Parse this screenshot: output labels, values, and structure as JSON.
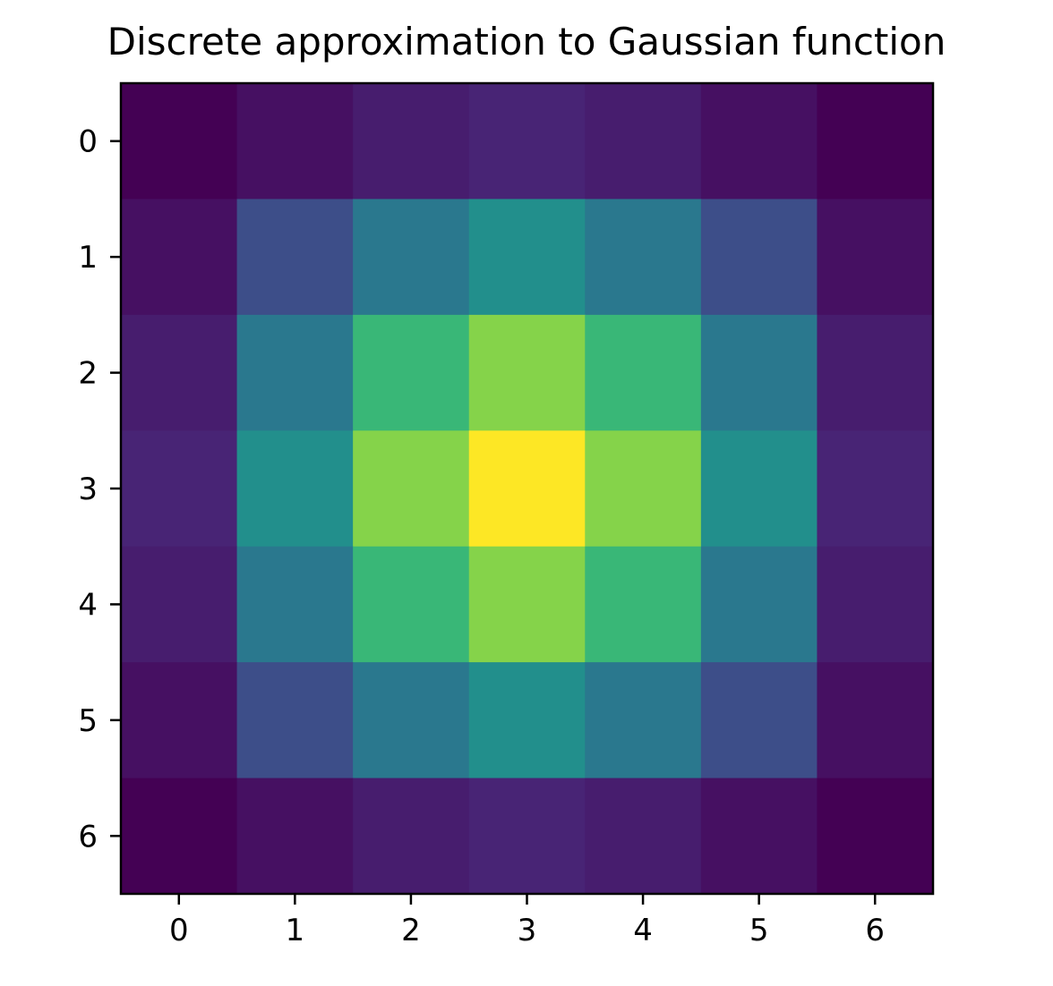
{
  "chart_data": {
    "type": "heatmap",
    "title": "Discrete approximation to Gaussian function",
    "xlabel": "",
    "ylabel": "",
    "x_ticks": [
      "0",
      "1",
      "2",
      "3",
      "4",
      "5",
      "6"
    ],
    "y_ticks": [
      "0",
      "1",
      "2",
      "3",
      "4",
      "5",
      "6"
    ],
    "xlim": [
      -0.5,
      6.5
    ],
    "ylim": [
      6.5,
      -0.5
    ],
    "grid": false,
    "legend": "none",
    "colormap": "viridis",
    "values": [
      [
        0.0183,
        0.0821,
        0.1353,
        0.1653,
        0.1353,
        0.0821,
        0.0183
      ],
      [
        0.0821,
        0.3679,
        0.6065,
        0.7408,
        0.6065,
        0.3679,
        0.0821
      ],
      [
        0.1353,
        0.6065,
        1.0,
        1.2214,
        1.0,
        0.6065,
        0.1353
      ],
      [
        0.1653,
        0.7408,
        1.2214,
        1.4918,
        1.2214,
        0.7408,
        0.1653
      ],
      [
        0.1353,
        0.6065,
        1.0,
        1.2214,
        1.0,
        0.6065,
        0.1353
      ],
      [
        0.0821,
        0.3679,
        0.6065,
        0.7408,
        0.6065,
        0.3679,
        0.0821
      ],
      [
        0.0183,
        0.0821,
        0.1353,
        0.1653,
        0.1353,
        0.0821,
        0.0183
      ]
    ],
    "colors": {
      "stops": [
        "#440154",
        "#482475",
        "#414487",
        "#355f8d",
        "#2a788e",
        "#21918c",
        "#22a884",
        "#44bf70",
        "#7ad151",
        "#bddf26",
        "#fde725"
      ],
      "axis": "#000000",
      "text": "#000000"
    }
  }
}
